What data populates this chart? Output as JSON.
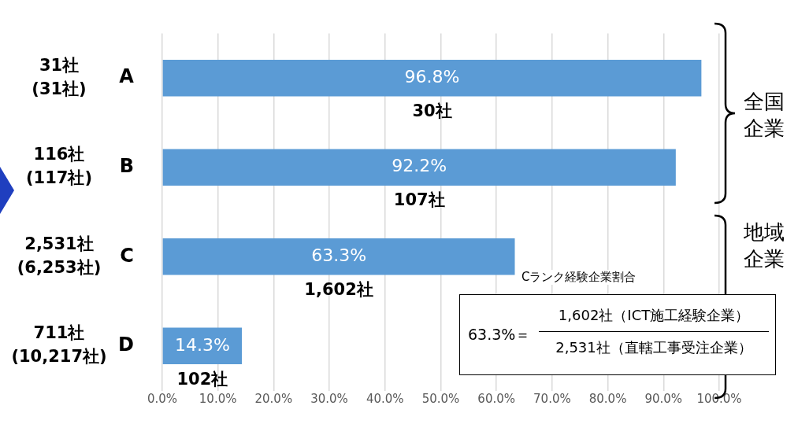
{
  "chart_data": {
    "type": "bar",
    "orientation": "horizontal",
    "categories": [
      "A",
      "B",
      "C",
      "D"
    ],
    "values": [
      96.8,
      92.2,
      63.3,
      14.3
    ],
    "color": "#5b9bd5",
    "value_labels": [
      "96.8%",
      "92.2%",
      "63.3%",
      "14.3%"
    ],
    "xlim": [
      0,
      100
    ],
    "xticks": [
      {
        "value": 0,
        "label": "0.0%"
      },
      {
        "value": 10,
        "label": "10.0%"
      },
      {
        "value": 20,
        "label": "20.0%"
      },
      {
        "value": 30,
        "label": "30.0%"
      },
      {
        "value": 40,
        "label": "40.0%"
      },
      {
        "value": 50,
        "label": "50.0%"
      },
      {
        "value": 60,
        "label": "60.0%"
      },
      {
        "value": 70,
        "label": "70.0%"
      },
      {
        "value": 80,
        "label": "80.0%"
      },
      {
        "value": 90,
        "label": "90.0%"
      },
      {
        "value": 100,
        "label": "100.0%"
      }
    ],
    "grid": "x",
    "legend": false,
    "annotations": [
      "31社\n(31社)",
      "116社\n(117社)",
      "2,531社\n(6,253社)",
      "711社\n(10,217社)",
      "30社",
      "107社",
      "1,602社",
      "102社",
      "全国企業",
      "地域企業",
      "Cランク経験企業割合",
      "63.3%＝",
      "1,602社（ICT施工経験企業）",
      "2,531社（直轄工事受注企業）"
    ]
  }
}
